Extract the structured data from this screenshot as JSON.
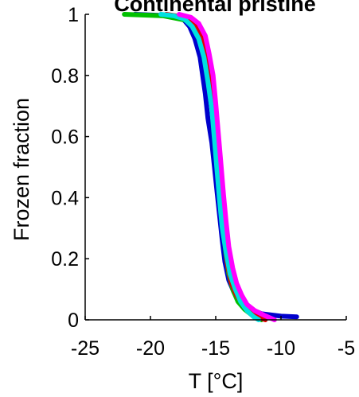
{
  "chart_data": {
    "type": "line",
    "title": "Continental pristine",
    "xlabel": "T [°C]",
    "ylabel": "Frozen fraction",
    "xlim": [
      -25,
      -5
    ],
    "ylim": [
      0,
      1
    ],
    "xticks": [
      -25,
      -20,
      -15,
      -10,
      -5
    ],
    "xtick_labels": [
      "-25",
      "-20",
      "-15",
      "-10",
      "-5"
    ],
    "yticks": [
      0,
      0.2,
      0.4,
      0.6,
      0.8,
      1
    ],
    "ytick_labels": [
      "0",
      "0.2",
      "0.4",
      "0.6",
      "0.8",
      "1"
    ],
    "grid": false,
    "series": [
      {
        "color": "#0000cc",
        "x": [
          -21.2,
          -18.5,
          -17.5,
          -17.0,
          -16.6,
          -16.2,
          -16.0,
          -15.8,
          -15.6,
          -15.3,
          -15.1,
          -14.9,
          -14.7,
          -14.5,
          -14.3,
          -14.0,
          -13.6,
          -13.2,
          -12.6,
          -11.5,
          -10.0,
          -8.8
        ],
        "y": [
          1.0,
          0.995,
          0.985,
          0.96,
          0.92,
          0.86,
          0.8,
          0.74,
          0.66,
          0.58,
          0.5,
          0.42,
          0.34,
          0.26,
          0.19,
          0.13,
          0.09,
          0.06,
          0.04,
          0.02,
          0.012,
          0.01
        ]
      },
      {
        "color": "#00c000",
        "x": [
          -22.0,
          -19.0,
          -17.2,
          -16.5,
          -16.0,
          -15.7,
          -15.4,
          -15.2,
          -15.0,
          -14.8,
          -14.6,
          -14.4,
          -14.2,
          -14.0,
          -13.7,
          -13.3,
          -12.8,
          -12.2,
          -11.5
        ],
        "y": [
          1.0,
          0.995,
          0.98,
          0.95,
          0.9,
          0.84,
          0.76,
          0.68,
          0.58,
          0.48,
          0.38,
          0.29,
          0.21,
          0.15,
          0.1,
          0.06,
          0.035,
          0.015,
          0.0
        ]
      },
      {
        "color": "#e00000",
        "x": [
          -18.8,
          -17.3,
          -16.7,
          -16.1,
          -15.8,
          -15.5,
          -15.3,
          -15.1,
          -14.9,
          -14.7,
          -14.5,
          -14.3,
          -14.1,
          -13.8,
          -13.4,
          -12.9,
          -12.4,
          -11.8,
          -11.2
        ],
        "y": [
          1.0,
          0.99,
          0.97,
          0.93,
          0.87,
          0.8,
          0.72,
          0.63,
          0.53,
          0.43,
          0.34,
          0.25,
          0.18,
          0.12,
          0.08,
          0.05,
          0.03,
          0.01,
          0.0
        ]
      },
      {
        "color": "#00e0e0",
        "x": [
          -19.2,
          -18.2,
          -17.4,
          -16.8,
          -16.3,
          -15.9,
          -15.6,
          -15.3,
          -15.1,
          -14.9,
          -14.7,
          -14.5,
          -14.2,
          -13.9,
          -13.5,
          -13.1,
          -12.6,
          -12.1,
          -11.7
        ],
        "y": [
          1.0,
          0.995,
          0.985,
          0.96,
          0.92,
          0.86,
          0.78,
          0.69,
          0.59,
          0.49,
          0.39,
          0.3,
          0.22,
          0.15,
          0.1,
          0.06,
          0.03,
          0.01,
          0.0
        ]
      },
      {
        "color": "#ff00ff",
        "x": [
          -17.8,
          -16.9,
          -16.3,
          -15.8,
          -15.5,
          -15.2,
          -15.0,
          -14.8,
          -14.6,
          -14.4,
          -14.2,
          -14.0,
          -13.7,
          -13.4,
          -13.0,
          -12.6,
          -12.0,
          -11.3,
          -10.5
        ],
        "y": [
          1.0,
          0.99,
          0.97,
          0.93,
          0.87,
          0.8,
          0.71,
          0.61,
          0.51,
          0.41,
          0.32,
          0.24,
          0.17,
          0.12,
          0.08,
          0.05,
          0.03,
          0.015,
          0.0
        ]
      }
    ]
  }
}
